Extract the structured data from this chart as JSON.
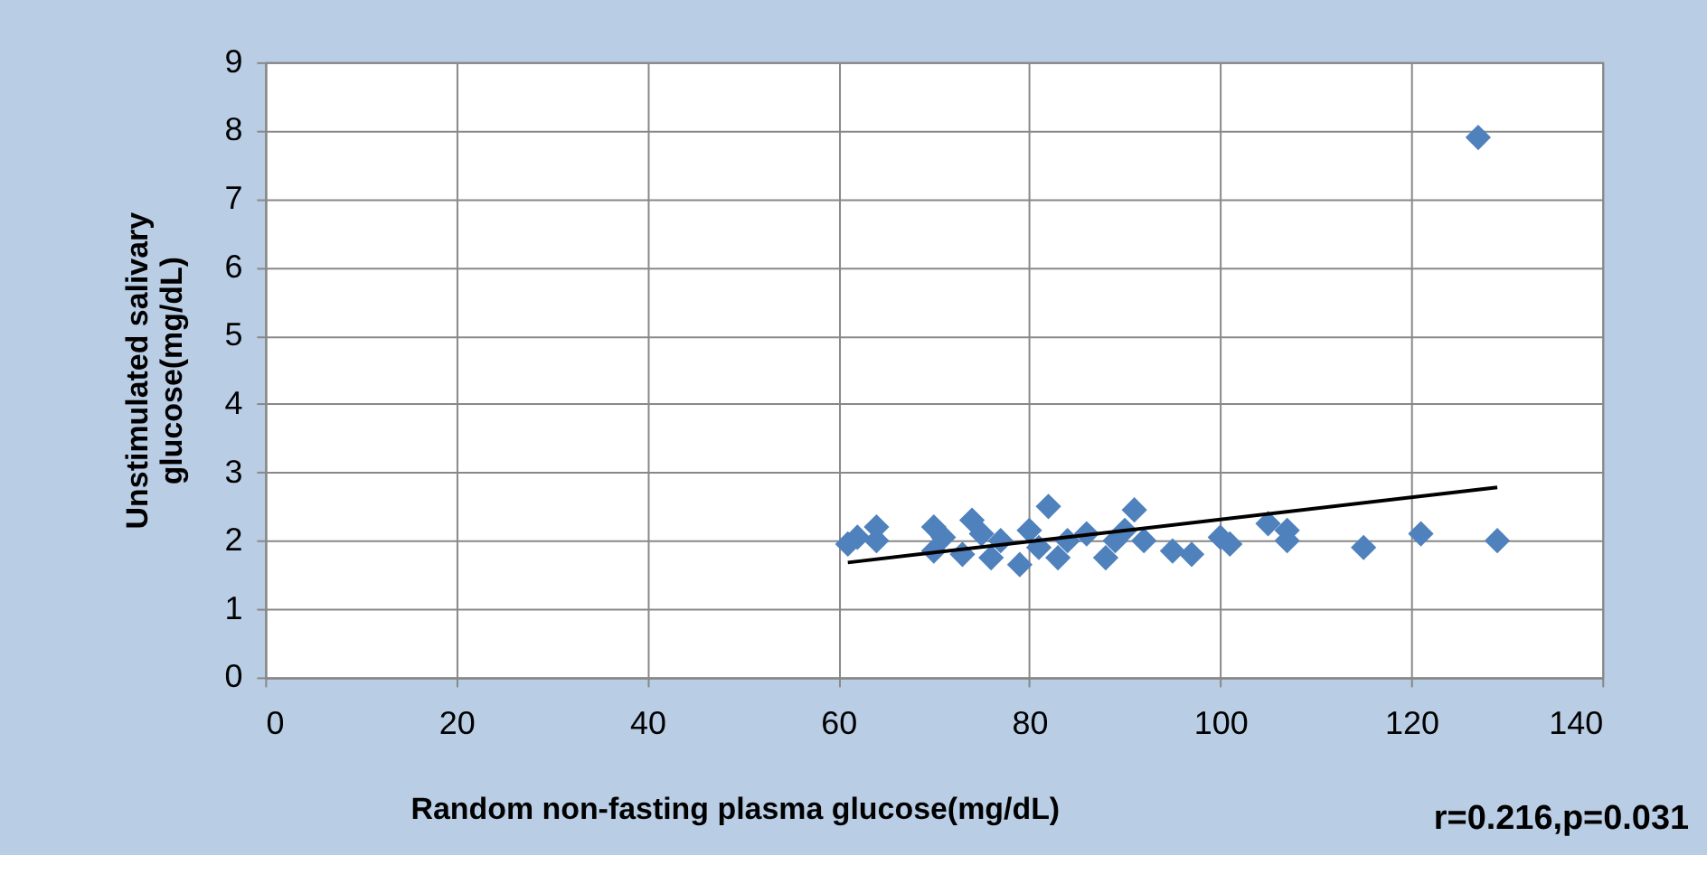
{
  "chart_data": {
    "type": "scatter",
    "xlabel": "Random non-fasting plasma glucose(mg/dL)",
    "ylabel": "Unstimulated salivary glucose(mg/dL)",
    "annotations": [
      "r=0.216,p=0.031"
    ],
    "xlim": [
      0,
      140
    ],
    "xticks": [
      0,
      20,
      40,
      60,
      80,
      100,
      120,
      140
    ],
    "ylim": [
      0,
      9
    ],
    "yticks": [
      0,
      1,
      2,
      3,
      4,
      5,
      6,
      7,
      8,
      9
    ],
    "grid": true,
    "marker": "diamond",
    "series": [
      {
        "color": "#4f81bd",
        "x": [
          61,
          62,
          64,
          64,
          70,
          70,
          71,
          73,
          74,
          75,
          76,
          77,
          79,
          80,
          81,
          82,
          83,
          84,
          86,
          88,
          89,
          90,
          91,
          92,
          95,
          97,
          100,
          101,
          105,
          107,
          107,
          115,
          121,
          127,
          129
        ],
        "values": [
          1.95,
          2.05,
          2.2,
          2.0,
          2.2,
          1.85,
          2.05,
          1.8,
          2.3,
          2.1,
          1.75,
          2.0,
          1.65,
          2.15,
          1.9,
          2.5,
          1.75,
          2.0,
          2.1,
          1.75,
          2.0,
          2.15,
          2.45,
          2.0,
          1.85,
          1.8,
          2.05,
          1.95,
          2.25,
          2.15,
          2.0,
          1.9,
          2.1,
          7.9,
          2.0
        ]
      },
      {
        "type": "line",
        "color": "#000000",
        "x": [
          61,
          129
        ],
        "values": [
          1.68,
          2.78
        ],
        "line_style": "solid",
        "marker": "none"
      }
    ]
  }
}
